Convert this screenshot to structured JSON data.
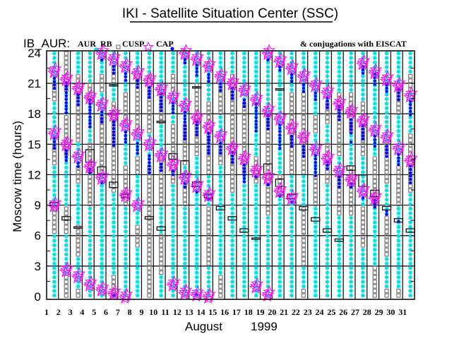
{
  "header": {
    "title": "IKI - Satellite Situation Center (SSC)"
  },
  "legend": {
    "prefix": "IB_AUR:",
    "aur_label": "AUR",
    "rb_label": "RB",
    "cusp_label": "CUSP",
    "cap_label": "CAP",
    "conjugations_label": "& conjugations with EISCAT"
  },
  "colors": {
    "aur": "#00e0e0",
    "rb": "#808080",
    "cusp": "#ff00ff",
    "cap": "#0000ff",
    "eiscat": "#000000",
    "grid": "#000000"
  },
  "chart_data": {
    "type": "scatter",
    "title": "IKI - Satellite Situation Center (SSC)",
    "xlabel_month": "August",
    "xlabel_year": "1999",
    "ylabel": "Moscow time (hours)",
    "ylim": [
      0,
      24
    ],
    "xlim": [
      1,
      32
    ],
    "yticks": [
      "0",
      "3",
      "6",
      "9",
      "12",
      "15",
      "18",
      "21",
      "24"
    ],
    "xticks": [
      "1",
      "2",
      "3",
      "4",
      "5",
      "6",
      "7",
      "8",
      "9",
      "10",
      "11",
      "12",
      "13",
      "14",
      "15",
      "16",
      "17",
      "18",
      "19",
      "20",
      "21",
      "22",
      "23",
      "24",
      "25",
      "26",
      "27",
      "28",
      "29",
      "30",
      "31"
    ],
    "grid": true,
    "days": [
      {
        "day": 1,
        "aur": [
          [
            0,
            6
          ],
          [
            9,
            13
          ],
          [
            15,
            19
          ],
          [
            21,
            24
          ]
        ],
        "cusp": [
          22.2,
          16.1,
          9.0
        ],
        "cap": [
          [
            20.5,
            21.8
          ],
          [
            14.6,
            15.7
          ]
        ],
        "eiscat": [
          [
            9.0,
            9.2
          ]
        ]
      },
      {
        "day": 2,
        "aur": [
          [
            2,
            6
          ],
          [
            9,
            14
          ],
          [
            18,
            20
          ]
        ],
        "cusp": [
          21.4,
          15.0,
          2.6
        ],
        "cap": [
          [
            18.1,
            21.1
          ],
          [
            13.4,
            14.4
          ]
        ],
        "eiscat": [
          [
            7.6,
            7.8
          ]
        ]
      },
      {
        "day": 3,
        "aur": [
          [
            1,
            4
          ],
          [
            7,
            11
          ],
          [
            13,
            15
          ],
          [
            22,
            24
          ]
        ],
        "cusp": [
          20.5,
          13.8,
          2.0
        ],
        "cap": [
          [
            18.9,
            20.0
          ],
          [
            12.8,
            13.2
          ]
        ],
        "eiscat": [
          [
            6.8,
            6.8
          ]
        ]
      },
      {
        "day": 4,
        "aur": [
          [
            0,
            9
          ],
          [
            15,
            19
          ],
          [
            21,
            24
          ]
        ],
        "cusp": [
          19.6,
          12.8,
          1.2
        ],
        "cap": [
          [
            16.7,
            19.4
          ],
          [
            12.2,
            12.6
          ]
        ],
        "eiscat": [
          [
            13.3,
            14.4
          ]
        ]
      },
      {
        "day": 5,
        "aur": [
          [
            0,
            12
          ],
          [
            18,
            20
          ],
          [
            22,
            24
          ]
        ],
        "cusp": [
          24.0,
          18.9,
          11.7,
          0.7
        ],
        "cap": [
          [
            23.3,
            23.6
          ],
          [
            17.2,
            18.4
          ],
          [
            11.2,
            11.4
          ]
        ],
        "eiscat": [
          [
            12.1,
            12.7
          ]
        ]
      },
      {
        "day": 6,
        "aur": [
          [
            2,
            10
          ],
          [
            19,
            21
          ],
          [
            23,
            24
          ]
        ],
        "cusp": [
          23.4,
          17.9,
          0.3
        ],
        "cap": [
          [
            22.0,
            22.7
          ],
          [
            14.9,
            17.4
          ],
          [
            0.1,
            0.3
          ]
        ],
        "eiscat": [
          [
            10.8,
            11.2
          ],
          [
            20.8,
            20.8
          ]
        ]
      },
      {
        "day": 7,
        "aur": [
          [
            0,
            9
          ],
          [
            13,
            17
          ],
          [
            20,
            24
          ]
        ],
        "cusp": [
          22.7,
          16.9,
          10.0,
          0.0
        ],
        "cap": [
          [
            21.3,
            22.1
          ],
          [
            15.2,
            16.3
          ]
        ],
        "eiscat": [
          [
            9.8,
            10.0
          ]
        ]
      },
      {
        "day": 8,
        "aur": [
          [
            0,
            5
          ],
          [
            7,
            12
          ],
          [
            14,
            16
          ],
          [
            22,
            24
          ]
        ],
        "cusp": [
          22.0,
          16.0,
          9.0
        ],
        "cap": [
          [
            20.6,
            21.3
          ],
          [
            14.1,
            15.3
          ]
        ],
        "eiscat": []
      },
      {
        "day": 9,
        "aur": [
          [
            13,
            16
          ],
          [
            22,
            24
          ]
        ],
        "cusp": [
          21.3,
          15.0
        ],
        "cap": [
          [
            19.6,
            20.6
          ],
          [
            12.2,
            14.1
          ]
        ],
        "eiscat": [
          [
            7.7,
            7.8
          ]
        ]
      },
      {
        "day": 10,
        "aur": [
          [
            0,
            2
          ],
          [
            6,
            9
          ],
          [
            14,
            17
          ],
          [
            20,
            24
          ]
        ],
        "cusp": [
          20.4,
          13.9
        ],
        "cap": [
          [
            18.3,
            20.0
          ],
          [
            12.4,
            13.2
          ]
        ],
        "eiscat": [
          [
            6.6,
            6.8
          ],
          [
            17.2,
            17.2
          ]
        ]
      },
      {
        "day": 11,
        "aur": [
          [
            0,
            11
          ],
          [
            17,
            20
          ],
          [
            22,
            24
          ]
        ],
        "cusp": [
          19.6,
          13.0,
          1.2
        ],
        "cap": [
          [
            18.1,
            19.1
          ],
          [
            12.0,
            12.6
          ]
        ],
        "eiscat": [
          [
            13.6,
            14.0
          ]
        ]
      },
      {
        "day": 12,
        "aur": [
          [
            0,
            9
          ],
          [
            11,
            13
          ],
          [
            17,
            24
          ]
        ],
        "cusp": [
          24.0,
          18.8,
          11.7,
          0.4
        ],
        "cap": [
          [
            23.0,
            23.5
          ],
          [
            15.5,
            18.4
          ],
          [
            10.8,
            11.2
          ]
        ],
        "eiscat": [
          [
            12.1,
            13.3
          ]
        ]
      },
      {
        "day": 13,
        "aur": [
          [
            0,
            14
          ],
          [
            21,
            24
          ]
        ],
        "cusp": [
          23.4,
          17.6,
          10.9,
          0.2
        ],
        "cap": [
          [
            21.8,
            22.9
          ],
          [
            15.9,
            17.4
          ],
          [
            10.3,
            10.5
          ],
          [
            0.2,
            0.3
          ]
        ],
        "eiscat": [
          [
            10.9,
            11.2
          ],
          [
            20.6,
            20.6
          ]
        ]
      },
      {
        "day": 14,
        "aur": [
          [
            0,
            3
          ],
          [
            9,
            12
          ],
          [
            19,
            24
          ]
        ],
        "cusp": [
          22.7,
          16.7,
          10.0,
          0.0
        ],
        "cap": [
          [
            21.2,
            22.0
          ],
          [
            14.1,
            16.3
          ],
          [
            9.6,
            9.8
          ]
        ],
        "eiscat": [
          [
            9.8,
            10.0
          ]
        ]
      },
      {
        "day": 15,
        "aur": [
          [
            2,
            13
          ],
          [
            15,
            18
          ],
          [
            21,
            24
          ]
        ],
        "cusp": [
          21.7,
          15.8
        ],
        "cap": [
          [
            20.3,
            21.1
          ],
          [
            14.1,
            15.3
          ]
        ],
        "eiscat": [
          [
            8.6,
            8.8
          ]
        ]
      },
      {
        "day": 16,
        "aur": [
          [
            0,
            10
          ],
          [
            22,
            24
          ]
        ],
        "cusp": [
          21.0,
          14.6
        ],
        "cap": [
          [
            19.5,
            20.6
          ],
          [
            13.2,
            14.2
          ]
        ],
        "eiscat": [
          [
            7.6,
            7.8
          ]
        ]
      },
      {
        "day": 17,
        "aur": [
          [
            0,
            12
          ],
          [
            19,
            24
          ]
        ],
        "cusp": [
          20.3,
          13.6
        ],
        "cap": [
          [
            18.7,
            19.6
          ],
          [
            11.3,
            13.0
          ]
        ],
        "eiscat": [
          [
            6.4,
            6.6
          ]
        ]
      },
      {
        "day": 18,
        "aur": [
          [
            0,
            11
          ],
          [
            14,
            24
          ]
        ],
        "cusp": [
          19.4,
          12.4,
          1.0
        ],
        "cap": [
          [
            16.3,
            19.0
          ],
          [
            11.8,
            12.1
          ]
        ],
        "eiscat": [
          [
            5.7,
            5.7
          ]
        ]
      },
      {
        "day": 19,
        "aur": [
          [
            0,
            8
          ],
          [
            18,
            24
          ]
        ],
        "cusp": [
          24.0,
          18.3,
          11.7,
          0.2
        ],
        "cap": [
          [
            23.3,
            23.5
          ],
          [
            16.5,
            18.0
          ],
          [
            11.0,
            11.3
          ]
        ],
        "eiscat": [
          [
            12.2,
            13.0
          ]
        ]
      },
      {
        "day": 20,
        "aur": [
          [
            0,
            10
          ],
          [
            12,
            24
          ]
        ],
        "cusp": [
          23.2,
          17.5,
          10.4
        ],
        "cap": [
          [
            22.3,
            22.8
          ],
          [
            14.6,
            16.9
          ],
          [
            9.9,
            10.2
          ]
        ],
        "eiscat": [
          [
            10.9,
            11.5
          ],
          [
            20.4,
            20.4
          ]
        ]
      },
      {
        "day": 21,
        "aur": [
          [
            0,
            12
          ],
          [
            20,
            24
          ]
        ],
        "cusp": [
          22.5,
          16.6,
          9.7
        ],
        "cap": [
          [
            21.2,
            22.0
          ],
          [
            14.8,
            15.9
          ],
          [
            9.3,
            9.5
          ]
        ],
        "eiscat": [
          [
            9.7,
            10.0
          ]
        ]
      },
      {
        "day": 22,
        "aur": [
          [
            1,
            3
          ],
          [
            9,
            12
          ],
          [
            20,
            24
          ]
        ],
        "cusp": [
          21.7,
          15.7
        ],
        "cap": [
          [
            20.2,
            21.0
          ],
          [
            13.8,
            15.0
          ]
        ],
        "eiscat": [
          [
            8.6,
            8.8
          ]
        ]
      },
      {
        "day": 23,
        "aur": [
          [
            0,
            9
          ],
          [
            12,
            16
          ],
          [
            18,
            24
          ]
        ],
        "cusp": [
          20.8,
          14.5
        ],
        "cap": [
          [
            19.4,
            20.2
          ],
          [
            11.9,
            13.9
          ]
        ],
        "eiscat": [
          [
            7.5,
            7.7
          ]
        ]
      },
      {
        "day": 24,
        "aur": [
          [
            0,
            11
          ],
          [
            15,
            17
          ],
          [
            19,
            24
          ]
        ],
        "cusp": [
          20.1,
          13.6
        ],
        "cap": [
          [
            18.6,
            19.6
          ],
          [
            12.6,
            13.3
          ]
        ],
        "eiscat": [
          [
            6.4,
            6.6
          ]
        ]
      },
      {
        "day": 25,
        "aur": [
          [
            0,
            8
          ],
          [
            12,
            14
          ],
          [
            20,
            24
          ]
        ],
        "cusp": [
          19.0,
          12.4
        ],
        "cap": [
          [
            17.4,
            18.8
          ],
          [
            10.8,
            12.0
          ]
        ],
        "eiscat": [
          [
            5.5,
            5.6
          ]
        ]
      },
      {
        "day": 26,
        "aur": [
          [
            0,
            8
          ],
          [
            13,
            16
          ],
          [
            20,
            24
          ]
        ],
        "cusp": [
          18.2,
          11.5
        ],
        "cap": [
          [
            16.1,
            17.6
          ],
          [
            15.2,
            15.3
          ],
          [
            10.8,
            11.4
          ]
        ],
        "eiscat": [
          [
            12.5,
            12.8
          ]
        ]
      },
      {
        "day": 27,
        "aur": [
          [
            0,
            5
          ],
          [
            9,
            14
          ],
          [
            19,
            24
          ]
        ],
        "cusp": [
          23.0,
          17.3,
          10.4
        ],
        "cap": [
          [
            22.0,
            22.7
          ],
          [
            15.5,
            16.9
          ],
          [
            9.7,
            10.0
          ]
        ],
        "eiscat": [
          [
            10.9,
            11.9
          ]
        ]
      },
      {
        "day": 28,
        "aur": [
          [
            3,
            9
          ],
          [
            14,
            24
          ]
        ],
        "cusp": [
          22.1,
          16.4,
          9.7
        ],
        "cap": [
          [
            20.9,
            22.0
          ],
          [
            14.8,
            16.0
          ],
          [
            8.8,
            9.5
          ]
        ],
        "eiscat": [
          [
            9.9,
            10.4
          ]
        ]
      },
      {
        "day": 29,
        "aur": [
          [
            1,
            4
          ],
          [
            8,
            11
          ],
          [
            15,
            24
          ]
        ],
        "cusp": [
          21.4,
          15.7
        ],
        "cap": [
          [
            20.2,
            21.1
          ],
          [
            13.8,
            15.0
          ],
          [
            8.1,
            8.7
          ]
        ],
        "eiscat": [
          [
            8.6,
            8.8
          ]
        ]
      },
      {
        "day": 30,
        "aur": [
          [
            1,
            9
          ],
          [
            13,
            18
          ],
          [
            21,
            24
          ]
        ],
        "cusp": [
          20.8,
          14.6
        ],
        "cap": [
          [
            19.4,
            20.5
          ],
          [
            13.0,
            14.1
          ],
          [
            7.4,
            7.6
          ]
        ],
        "eiscat": [
          [
            7.4,
            7.6
          ]
        ]
      },
      {
        "day": 31,
        "aur": [
          [
            0,
            10
          ],
          [
            16,
            20
          ],
          [
            22,
            24
          ]
        ],
        "cusp": [
          19.8,
          13.4
        ],
        "cap": [
          [
            17.9,
            19.4
          ],
          [
            11.2,
            13.0
          ]
        ],
        "eiscat": [
          [
            6.4,
            6.6
          ]
        ]
      }
    ]
  }
}
